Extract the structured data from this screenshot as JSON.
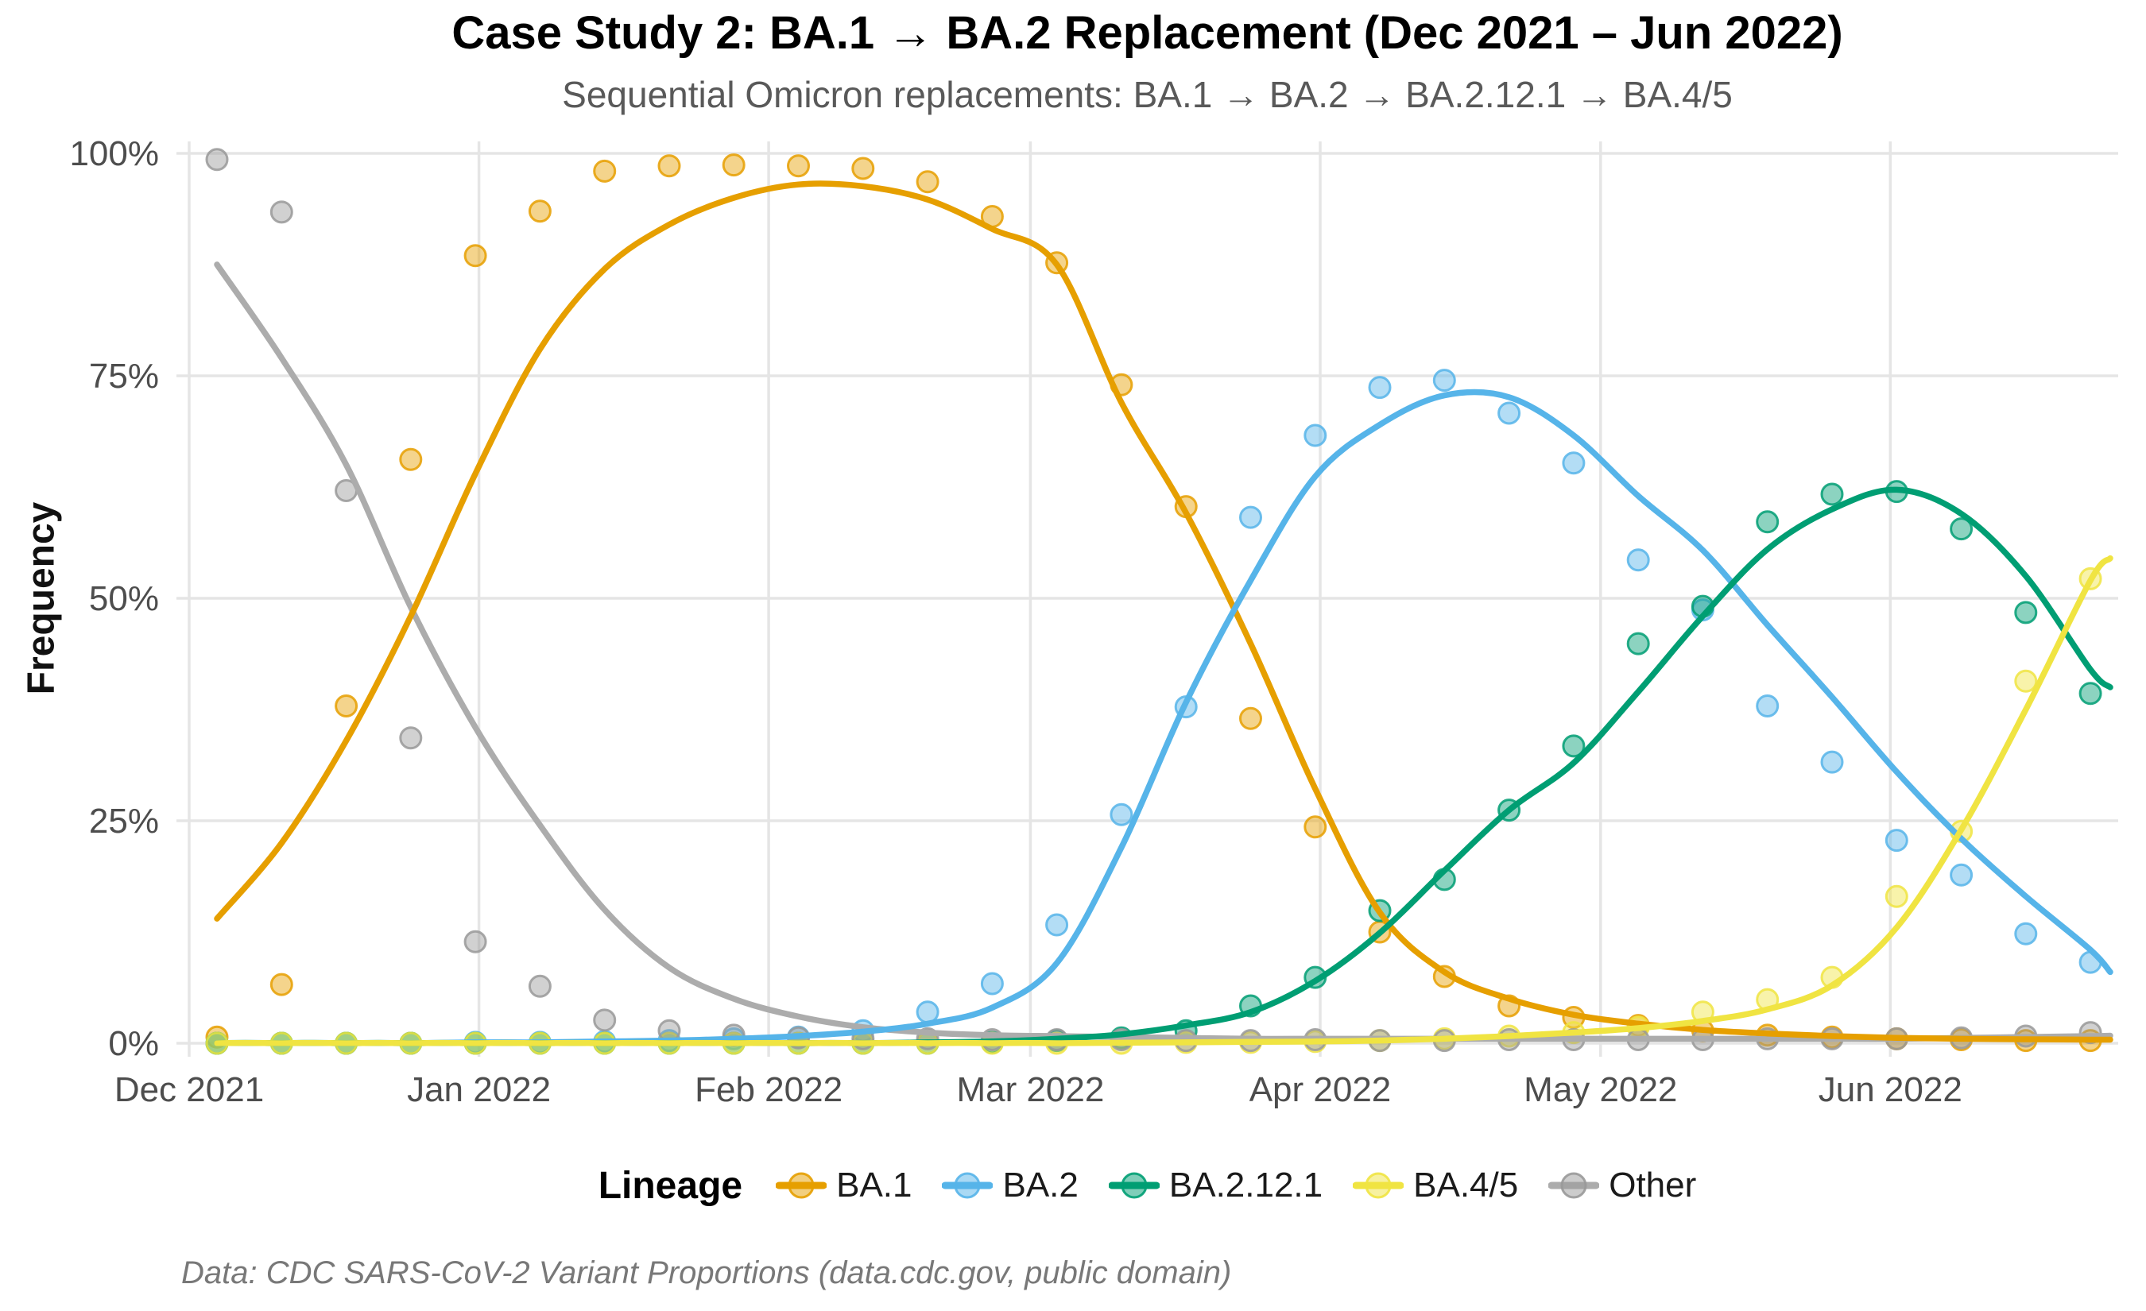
{
  "title": "Case Study 2: BA.1 → BA.2 Replacement (Dec 2021 – Jun 2022)",
  "subtitle": "Sequential Omicron replacements: BA.1 → BA.2 → BA.2.12.1 → BA.4/5",
  "caption": "Data: CDC SARS-CoV-2 Variant Proportions (data.cdc.gov, public domain)",
  "legend": {
    "title": "Lineage"
  },
  "axes": {
    "y_label": "Frequency",
    "y_ticks": [
      {
        "label": "0%",
        "value": 0
      },
      {
        "label": "25%",
        "value": 25
      },
      {
        "label": "50%",
        "value": 50
      },
      {
        "label": "75%",
        "value": 75
      },
      {
        "label": "100%",
        "value": 100
      }
    ],
    "x_ticks": [
      {
        "label": "Dec 2021",
        "day": 0
      },
      {
        "label": "Jan 2022",
        "day": 31
      },
      {
        "label": "Feb 2022",
        "day": 62
      },
      {
        "label": "Mar 2022",
        "day": 90
      },
      {
        "label": "Apr 2022",
        "day": 121
      },
      {
        "label": "May 2022",
        "day": 151
      },
      {
        "label": "Jun 2022",
        "day": 182
      }
    ]
  },
  "chart_data": {
    "type": "scatter",
    "note": "weekly variant share points with loess trend lines",
    "title": "Case Study 2: BA.1 → BA.2 Replacement (Dec 2021 – Jun 2022)",
    "xlabel": "",
    "ylabel": "Frequency",
    "ylim": [
      0,
      100
    ],
    "grid": true,
    "legend_position": "bottom",
    "categories": [
      "2021-12-04",
      "2021-12-11",
      "2021-12-18",
      "2021-12-25",
      "2022-01-01",
      "2022-01-08",
      "2022-01-15",
      "2022-01-22",
      "2022-01-29",
      "2022-02-05",
      "2022-02-12",
      "2022-02-19",
      "2022-02-26",
      "2022-03-05",
      "2022-03-12",
      "2022-03-19",
      "2022-03-26",
      "2022-04-02",
      "2022-04-09",
      "2022-04-16",
      "2022-04-23",
      "2022-04-30",
      "2022-05-07",
      "2022-05-14",
      "2022-05-21",
      "2022-05-28",
      "2022-06-04",
      "2022-06-11",
      "2022-06-18",
      "2022-06-25"
    ],
    "series": [
      {
        "name": "BA.1",
        "color": "#E69F00",
        "points": [
          0.7,
          6.6,
          37.9,
          65.6,
          88.5,
          93.5,
          98.0,
          98.6,
          98.7,
          98.6,
          98.3,
          96.8,
          92.9,
          87.7,
          74.0,
          60.3,
          36.5,
          24.3,
          12.5,
          7.5,
          4.2,
          2.9,
          2.0,
          1.4,
          0.9,
          0.7,
          0.5,
          0.4,
          0.3,
          0.3
        ],
        "trend": [
          14,
          22.5,
          34,
          48,
          64,
          78,
          87,
          92,
          95,
          96.5,
          96.3,
          94.8,
          91.5,
          87.5,
          72,
          59.6,
          44.9,
          28.6,
          14.7,
          8,
          5,
          3.2,
          2.2,
          1.5,
          1.1,
          0.8,
          0.6,
          0.5,
          0.45,
          0.4
        ],
        "trend_edge": 0.4
      },
      {
        "name": "BA.2",
        "color": "#56B4E9",
        "points": [
          0,
          0,
          0,
          0,
          0.1,
          0.1,
          0.2,
          0.3,
          0.5,
          0.7,
          1.4,
          3.5,
          6.7,
          13.3,
          25.7,
          37.8,
          59.1,
          68.3,
          73.7,
          74.5,
          70.8,
          65.2,
          54.3,
          48.7,
          37.9,
          31.6,
          22.8,
          18.9,
          12.3,
          9.1
        ],
        "trend": [
          0,
          0,
          0,
          0,
          0.1,
          0.1,
          0.2,
          0.3,
          0.5,
          0.8,
          1.3,
          2.2,
          4,
          9,
          22,
          38.3,
          52,
          63.7,
          69.5,
          72.8,
          72.6,
          68.3,
          61.5,
          55.4,
          47,
          38.9,
          30.5,
          23,
          16.5,
          10.5
        ],
        "trend_edge": 8
      },
      {
        "name": "BA.2.12.1",
        "color": "#009E73",
        "points": [
          0,
          0,
          0,
          0,
          0,
          0,
          0,
          0,
          0,
          0,
          0,
          0,
          0.1,
          0.3,
          0.6,
          1.4,
          4.2,
          7.4,
          14.9,
          18.4,
          26.2,
          33.4,
          44.9,
          49.1,
          58.6,
          61.7,
          62.0,
          57.8,
          48.4,
          39.3
        ],
        "trend": [
          0,
          0,
          0,
          0,
          0,
          0,
          0,
          0,
          0,
          0,
          0,
          0.1,
          0.2,
          0.5,
          1,
          2,
          3.5,
          7,
          12.4,
          19.4,
          26.2,
          31.5,
          39.5,
          48,
          55.5,
          60,
          62.2,
          59.5,
          52.5,
          42
        ],
        "trend_edge": 40
      },
      {
        "name": "BA.4/5",
        "color": "#F0E442",
        "points": [
          0,
          0,
          0,
          0,
          0,
          0,
          0,
          0,
          0,
          0,
          0,
          0,
          0,
          0,
          0,
          0.1,
          0.1,
          0.2,
          0.3,
          0.5,
          0.8,
          1.2,
          1.8,
          3.5,
          4.9,
          7.4,
          16.5,
          23.8,
          40.7,
          52.2
        ],
        "trend": [
          0,
          0,
          0,
          0,
          0,
          0,
          0,
          0,
          0,
          0,
          0,
          0,
          0,
          0,
          0.05,
          0.1,
          0.15,
          0.2,
          0.3,
          0.5,
          0.8,
          1.2,
          1.7,
          2.5,
          3.8,
          6.5,
          13,
          24,
          37.5,
          52
        ],
        "trend_edge": 54.5
      },
      {
        "name": "Other",
        "color": "#ACACAC",
        "point_color": "#999999",
        "points": [
          99.3,
          93.4,
          62.1,
          34.3,
          11.4,
          6.4,
          2.6,
          1.4,
          0.9,
          0.6,
          0.5,
          0.5,
          0.4,
          0.4,
          0.4,
          0.3,
          0.3,
          0.4,
          0.3,
          0.3,
          0.4,
          0.4,
          0.4,
          0.4,
          0.5,
          0.5,
          0.5,
          0.6,
          0.8,
          1.2
        ],
        "trend": [
          87.5,
          77,
          65,
          49,
          35.5,
          24.5,
          15,
          8.5,
          5,
          3,
          1.8,
          1.2,
          0.9,
          0.8,
          0.7,
          0.6,
          0.5,
          0.5,
          0.5,
          0.5,
          0.5,
          0.5,
          0.5,
          0.5,
          0.5,
          0.5,
          0.5,
          0.6,
          0.7,
          0.8
        ],
        "trend_edge": 0.85
      }
    ]
  }
}
